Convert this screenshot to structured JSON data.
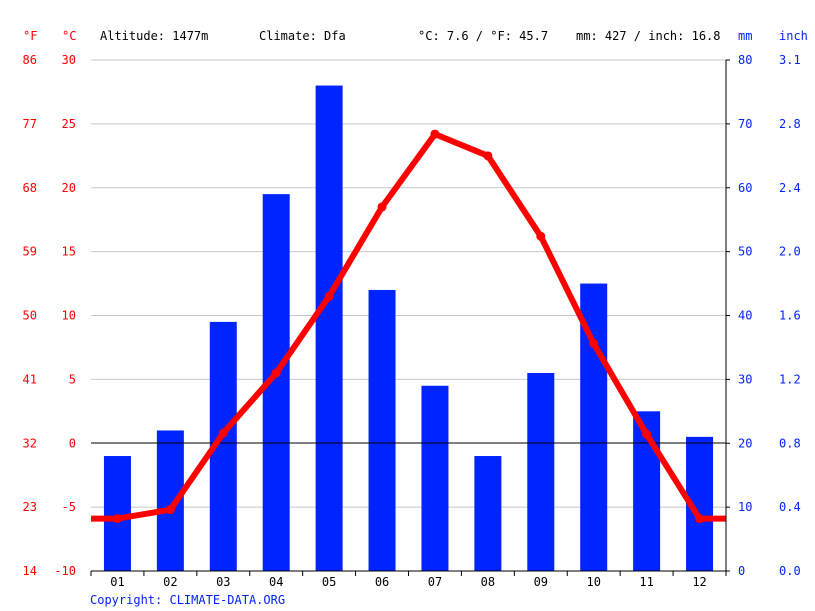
{
  "colors": {
    "temperature": "#ff0000",
    "precipitation": "#0024ff",
    "fahrenheit_axis": "#ff0000",
    "celsius_axis": "#ff0000",
    "mm_axis": "#0024ff",
    "inch_axis": "#0024ff",
    "grid": "#c8c8c8",
    "zero_line": "#000000",
    "copyright": "#0024ff"
  },
  "header": {
    "unit_f": "°F",
    "unit_c": "°C",
    "altitude": "Altitude: 1477m",
    "climate": "Climate: Dfa",
    "temp_avg": "°C: 7.6 / °F: 45.7",
    "precip_total": "mm: 427 / inch: 16.8",
    "unit_mm": "mm",
    "unit_inch": "inch"
  },
  "footer": {
    "copyright": "Copyright: CLIMATE-DATA.ORG"
  },
  "chart_data": {
    "type": "bar",
    "categories": [
      "01",
      "02",
      "03",
      "04",
      "05",
      "06",
      "07",
      "08",
      "09",
      "10",
      "11",
      "12"
    ],
    "series": [
      {
        "kind": "bar",
        "axis": "mm",
        "values": [
          18.0,
          22.0,
          39.0,
          59.0,
          76.0,
          44.0,
          29.0,
          18.0,
          31.0,
          45.0,
          25.0,
          21.0
        ]
      },
      {
        "kind": "line",
        "axis": "celsius",
        "values": [
          -5.9,
          -5.2,
          0.8,
          5.5,
          11.5,
          18.5,
          24.2,
          22.5,
          16.2,
          7.8,
          0.7,
          -5.9
        ]
      }
    ],
    "axes": {
      "celsius": {
        "range": [
          -10,
          30
        ],
        "ticks": [
          -10,
          -5,
          0,
          5,
          10,
          15,
          20,
          25,
          30
        ]
      },
      "fahrenheit": {
        "ticks": [
          "14",
          "23",
          "32",
          "41",
          "50",
          "59",
          "68",
          "77",
          "86"
        ]
      },
      "mm": {
        "range": [
          0,
          80
        ],
        "ticks": [
          0,
          10,
          20,
          30,
          40,
          50,
          60,
          70,
          80
        ]
      },
      "inch": {
        "ticks": [
          "0.0",
          "0.4",
          "0.8",
          "1.2",
          "1.6",
          "2.0",
          "2.4",
          "2.8",
          "3.1"
        ]
      }
    },
    "grid": true
  }
}
